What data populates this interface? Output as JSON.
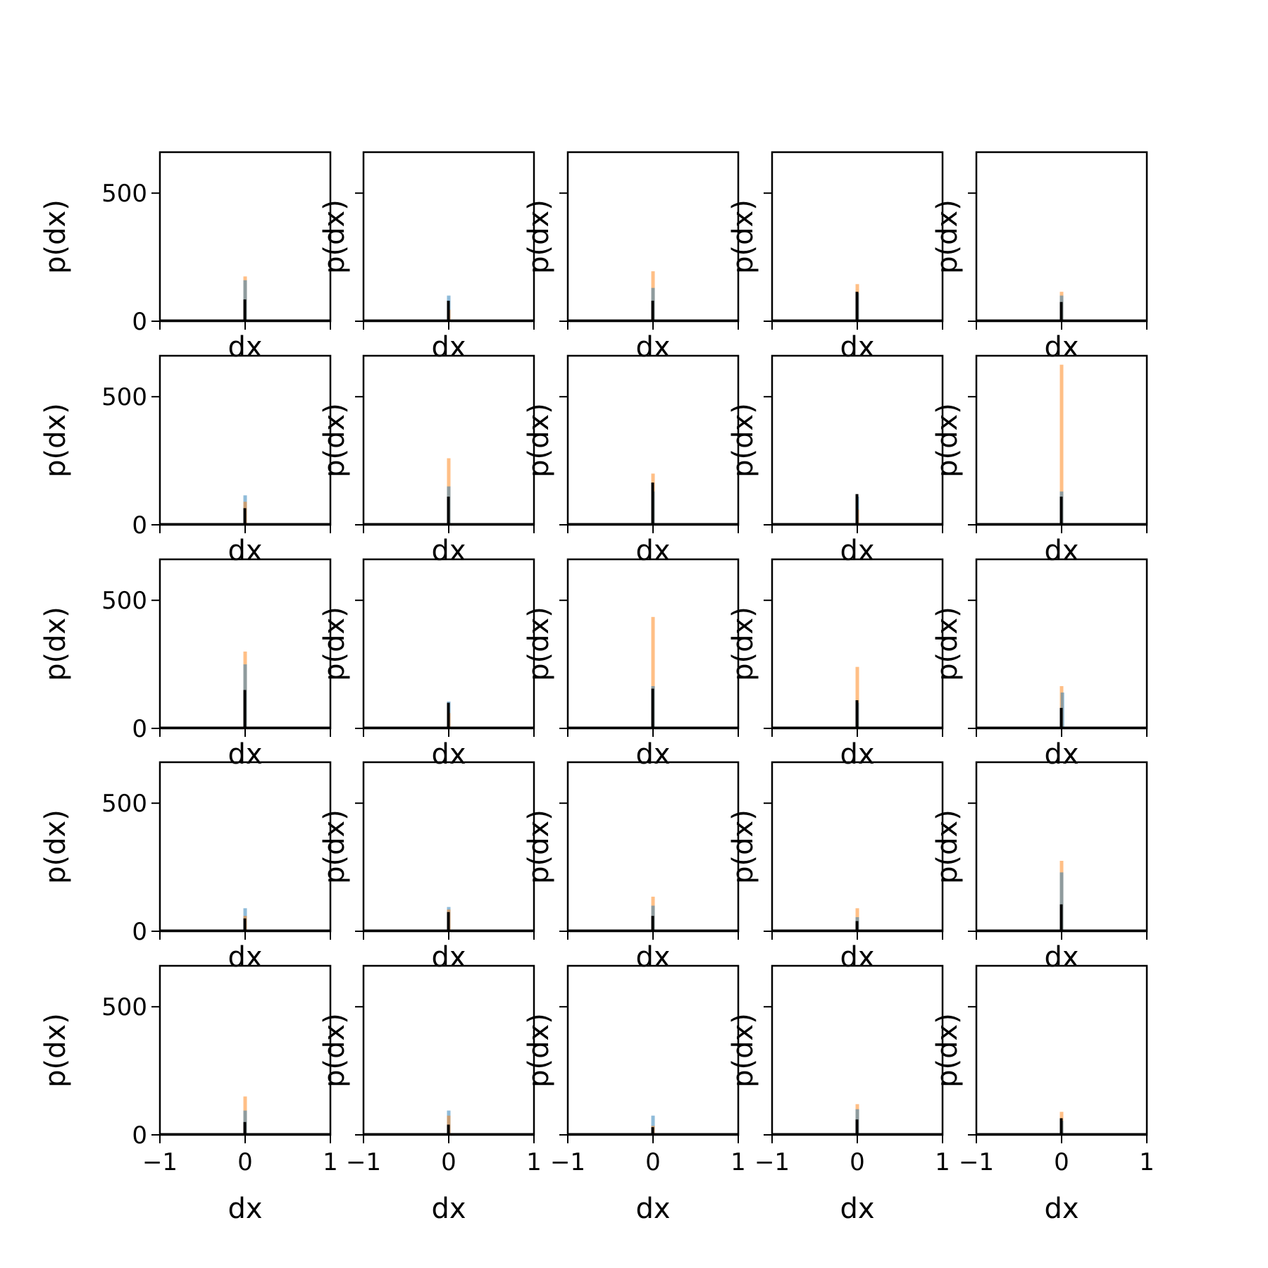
{
  "colors": {
    "series_blue": "#1f77b4",
    "series_orange": "#ff7f0e",
    "series_black": "#000000",
    "axes": "#000000",
    "background": "#ffffff"
  },
  "chart_data": {
    "type": "bar",
    "layout": "5x5 grid of histograms, shared axes",
    "xlabel": "dx",
    "ylabel": "p(dx)",
    "xlim": [
      -1,
      1
    ],
    "ylim": [
      0,
      660
    ],
    "x_ticks": [
      "−1",
      "0",
      "1"
    ],
    "y_ticks": [
      "0",
      "500"
    ],
    "grid": false,
    "series_colors": [
      "#1f77b4",
      "#ff7f0e",
      "#000000"
    ],
    "panels": [
      {
        "row": 1,
        "col": 1,
        "peaks": [
          {
            "color": "#1f77b4",
            "x": 0.0,
            "value": 160
          },
          {
            "color": "#ff7f0e",
            "x": 0.0,
            "value": 175
          },
          {
            "color": "#000000",
            "x": 0.0,
            "value": 85
          }
        ]
      },
      {
        "row": 1,
        "col": 2,
        "peaks": [
          {
            "color": "#1f77b4",
            "x": 0.0,
            "value": 100
          },
          {
            "color": "#ff7f0e",
            "x": 0.0,
            "value": 45
          },
          {
            "color": "#000000",
            "x": 0.0,
            "value": 80
          }
        ]
      },
      {
        "row": 1,
        "col": 3,
        "peaks": [
          {
            "color": "#1f77b4",
            "x": 0.0,
            "value": 130
          },
          {
            "color": "#ff7f0e",
            "x": 0.0,
            "value": 195
          },
          {
            "color": "#000000",
            "x": 0.0,
            "value": 80
          }
        ]
      },
      {
        "row": 1,
        "col": 4,
        "peaks": [
          {
            "color": "#1f77b4",
            "x": 0.0,
            "value": 110
          },
          {
            "color": "#ff7f0e",
            "x": 0.0,
            "value": 145
          },
          {
            "color": "#000000",
            "x": 0.0,
            "value": 115
          }
        ]
      },
      {
        "row": 1,
        "col": 5,
        "peaks": [
          {
            "color": "#1f77b4",
            "x": 0.0,
            "value": 100
          },
          {
            "color": "#ff7f0e",
            "x": 0.0,
            "value": 115
          },
          {
            "color": "#000000",
            "x": 0.0,
            "value": 75
          }
        ]
      },
      {
        "row": 2,
        "col": 1,
        "peaks": [
          {
            "color": "#1f77b4",
            "x": 0.0,
            "value": 115
          },
          {
            "color": "#ff7f0e",
            "x": 0.0,
            "value": 90
          },
          {
            "color": "#000000",
            "x": 0.0,
            "value": 65
          }
        ]
      },
      {
        "row": 2,
        "col": 2,
        "peaks": [
          {
            "color": "#1f77b4",
            "x": 0.0,
            "value": 150
          },
          {
            "color": "#ff7f0e",
            "x": 0.0,
            "value": 260
          },
          {
            "color": "#000000",
            "x": 0.0,
            "value": 110
          }
        ]
      },
      {
        "row": 2,
        "col": 3,
        "peaks": [
          {
            "color": "#1f77b4",
            "x": 0.0,
            "value": 130
          },
          {
            "color": "#ff7f0e",
            "x": 0.0,
            "value": 200
          },
          {
            "color": "#000000",
            "x": 0.0,
            "value": 165
          }
        ]
      },
      {
        "row": 2,
        "col": 4,
        "peaks": [
          {
            "color": "#1f77b4",
            "x": 0.0,
            "value": 110
          },
          {
            "color": "#ff7f0e",
            "x": 0.0,
            "value": 60
          },
          {
            "color": "#000000",
            "x": 0.0,
            "value": 120
          }
        ]
      },
      {
        "row": 2,
        "col": 5,
        "peaks": [
          {
            "color": "#1f77b4",
            "x": 0.0,
            "value": 130
          },
          {
            "color": "#ff7f0e",
            "x": 0.0,
            "value": 625
          },
          {
            "color": "#000000",
            "x": 0.0,
            "value": 110
          }
        ]
      },
      {
        "row": 3,
        "col": 1,
        "peaks": [
          {
            "color": "#1f77b4",
            "x": 0.0,
            "value": 250
          },
          {
            "color": "#ff7f0e",
            "x": 0.0,
            "value": 300
          },
          {
            "color": "#000000",
            "x": 0.0,
            "value": 150
          }
        ]
      },
      {
        "row": 3,
        "col": 2,
        "peaks": [
          {
            "color": "#1f77b4",
            "x": 0.0,
            "value": 105
          },
          {
            "color": "#ff7f0e",
            "x": 0.0,
            "value": 60
          },
          {
            "color": "#000000",
            "x": 0.0,
            "value": 100
          }
        ]
      },
      {
        "row": 3,
        "col": 3,
        "peaks": [
          {
            "color": "#1f77b4",
            "x": 0.0,
            "value": 165
          },
          {
            "color": "#ff7f0e",
            "x": 0.0,
            "value": 435
          },
          {
            "color": "#000000",
            "x": 0.0,
            "value": 155
          }
        ]
      },
      {
        "row": 3,
        "col": 4,
        "peaks": [
          {
            "color": "#1f77b4",
            "x": 0.0,
            "value": 100
          },
          {
            "color": "#ff7f0e",
            "x": 0.0,
            "value": 240
          },
          {
            "color": "#000000",
            "x": 0.0,
            "value": 110
          }
        ]
      },
      {
        "row": 3,
        "col": 5,
        "peaks": [
          {
            "color": "#1f77b4",
            "x": 0.01,
            "value": 140
          },
          {
            "color": "#ff7f0e",
            "x": 0.0,
            "value": 165
          },
          {
            "color": "#000000",
            "x": 0.0,
            "value": 80
          }
        ]
      },
      {
        "row": 4,
        "col": 1,
        "peaks": [
          {
            "color": "#1f77b4",
            "x": 0.0,
            "value": 90
          },
          {
            "color": "#ff7f0e",
            "x": 0.0,
            "value": 60
          },
          {
            "color": "#000000",
            "x": 0.0,
            "value": 50
          }
        ]
      },
      {
        "row": 4,
        "col": 2,
        "peaks": [
          {
            "color": "#1f77b4",
            "x": 0.0,
            "value": 95
          },
          {
            "color": "#ff7f0e",
            "x": 0.0,
            "value": 85
          },
          {
            "color": "#000000",
            "x": 0.0,
            "value": 75
          }
        ]
      },
      {
        "row": 4,
        "col": 3,
        "peaks": [
          {
            "color": "#1f77b4",
            "x": 0.0,
            "value": 100
          },
          {
            "color": "#ff7f0e",
            "x": 0.0,
            "value": 135
          },
          {
            "color": "#000000",
            "x": 0.0,
            "value": 60
          }
        ]
      },
      {
        "row": 4,
        "col": 4,
        "peaks": [
          {
            "color": "#1f77b4",
            "x": 0.0,
            "value": 55
          },
          {
            "color": "#ff7f0e",
            "x": 0.0,
            "value": 90
          },
          {
            "color": "#000000",
            "x": 0.0,
            "value": 40
          }
        ]
      },
      {
        "row": 4,
        "col": 5,
        "peaks": [
          {
            "color": "#1f77b4",
            "x": 0.0,
            "value": 230
          },
          {
            "color": "#ff7f0e",
            "x": 0.0,
            "value": 275
          },
          {
            "color": "#000000",
            "x": 0.0,
            "value": 105
          }
        ]
      },
      {
        "row": 5,
        "col": 1,
        "peaks": [
          {
            "color": "#1f77b4",
            "x": 0.0,
            "value": 95
          },
          {
            "color": "#ff7f0e",
            "x": 0.0,
            "value": 150
          },
          {
            "color": "#000000",
            "x": 0.0,
            "value": 50
          }
        ]
      },
      {
        "row": 5,
        "col": 2,
        "peaks": [
          {
            "color": "#1f77b4",
            "x": 0.0,
            "value": 95
          },
          {
            "color": "#ff7f0e",
            "x": 0.0,
            "value": 75
          },
          {
            "color": "#000000",
            "x": 0.0,
            "value": 40
          }
        ]
      },
      {
        "row": 5,
        "col": 3,
        "peaks": [
          {
            "color": "#1f77b4",
            "x": 0.0,
            "value": 75
          },
          {
            "color": "#ff7f0e",
            "x": 0.0,
            "value": 35
          },
          {
            "color": "#000000",
            "x": 0.0,
            "value": 30
          }
        ]
      },
      {
        "row": 5,
        "col": 4,
        "peaks": [
          {
            "color": "#1f77b4",
            "x": 0.0,
            "value": 100
          },
          {
            "color": "#ff7f0e",
            "x": 0.0,
            "value": 120
          },
          {
            "color": "#000000",
            "x": 0.0,
            "value": 60
          }
        ]
      },
      {
        "row": 5,
        "col": 5,
        "peaks": [
          {
            "color": "#1f77b4",
            "x": 0.0,
            "value": 55
          },
          {
            "color": "#ff7f0e",
            "x": 0.0,
            "value": 90
          },
          {
            "color": "#000000",
            "x": 0.0,
            "value": 65
          }
        ]
      }
    ]
  }
}
